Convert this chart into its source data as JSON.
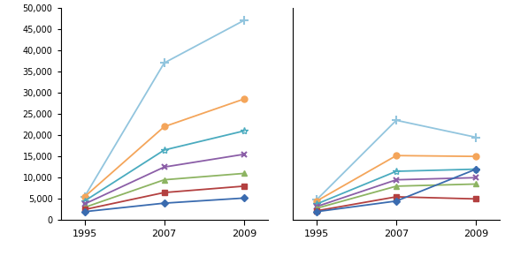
{
  "x_labels": [
    "1995",
    "2007",
    "2009"
  ],
  "x_positions": [
    0,
    1,
    2
  ],
  "left_series": [
    {
      "values": [
        5500,
        37000,
        47000
      ],
      "color": "#92C5DE",
      "marker": "+",
      "ms": 7,
      "mew": 1.5
    },
    {
      "values": [
        5500,
        22000,
        28500
      ],
      "color": "#F4A55A",
      "marker": "o",
      "ms": 5,
      "mew": 1.0
    },
    {
      "values": [
        4500,
        16500,
        21000
      ],
      "color": "#4AABBF",
      "marker": "*",
      "ms": 6,
      "mew": 1.0
    },
    {
      "values": [
        3800,
        12500,
        15500
      ],
      "color": "#8B5EA7",
      "marker": "x",
      "ms": 5,
      "mew": 1.5
    },
    {
      "values": [
        3000,
        9500,
        11000
      ],
      "color": "#8DB462",
      "marker": "^",
      "ms": 5,
      "mew": 1.0
    },
    {
      "values": [
        2500,
        6500,
        8000
      ],
      "color": "#B34040",
      "marker": "s",
      "ms": 4,
      "mew": 1.0
    },
    {
      "values": [
        2000,
        4000,
        5200
      ],
      "color": "#3A6BAF",
      "marker": "D",
      "ms": 4,
      "mew": 1.0
    }
  ],
  "right_series": [
    {
      "values": [
        4800,
        23500,
        19500
      ],
      "color": "#92C5DE",
      "marker": "+",
      "ms": 7,
      "mew": 1.5
    },
    {
      "values": [
        4500,
        15200,
        15000
      ],
      "color": "#F4A55A",
      "marker": "o",
      "ms": 5,
      "mew": 1.0
    },
    {
      "values": [
        3800,
        11500,
        12000
      ],
      "color": "#4AABBF",
      "marker": "*",
      "ms": 6,
      "mew": 1.0
    },
    {
      "values": [
        3200,
        9500,
        10000
      ],
      "color": "#8B5EA7",
      "marker": "x",
      "ms": 5,
      "mew": 1.5
    },
    {
      "values": [
        2800,
        8000,
        8500
      ],
      "color": "#8DB462",
      "marker": "^",
      "ms": 5,
      "mew": 1.0
    },
    {
      "values": [
        2200,
        5500,
        5000
      ],
      "color": "#B34040",
      "marker": "s",
      "ms": 4,
      "mew": 1.0
    },
    {
      "values": [
        2000,
        4500,
        12000
      ],
      "color": "#3A6BAF",
      "marker": "D",
      "ms": 4,
      "mew": 1.0
    }
  ],
  "ylim": [
    0,
    50000
  ],
  "yticks": [
    0,
    5000,
    10000,
    15000,
    20000,
    25000,
    30000,
    35000,
    40000,
    45000,
    50000
  ],
  "background_color": "#ffffff",
  "linewidth": 1.3
}
